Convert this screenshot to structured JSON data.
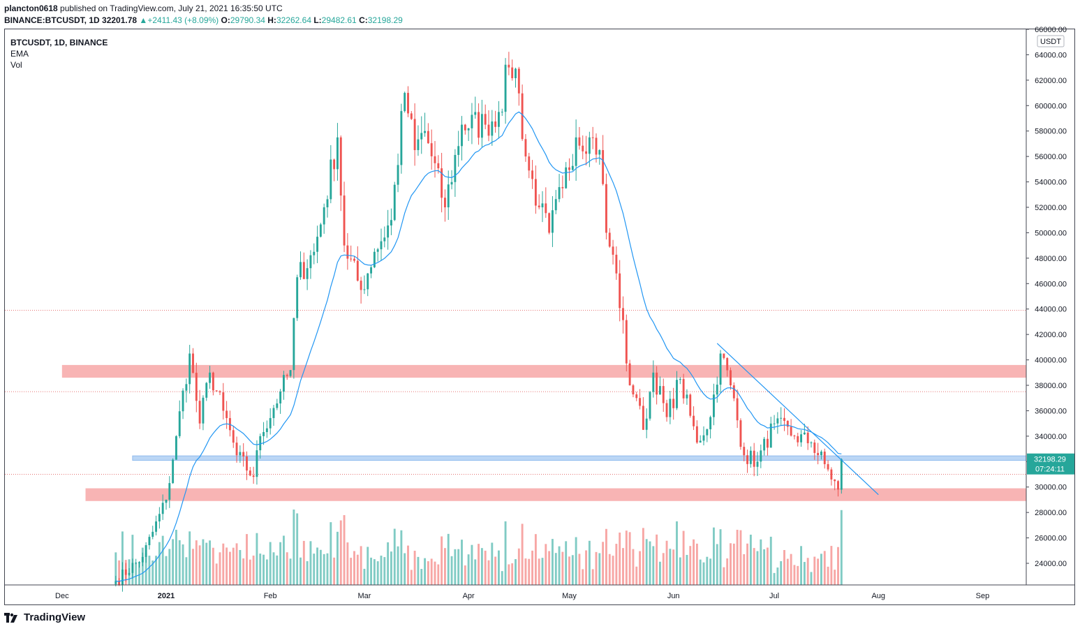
{
  "header": {
    "publisher": "plancton0618",
    "published_text": "published on TradingView.com, July 21, 2021 16:35:50 UTC",
    "symbol_full": "BINANCE:BTCUSDT, 1D",
    "last": "32201.78",
    "change": "+2411.43 (+8.09%)",
    "o_label": "O:",
    "o": "29790.34",
    "h_label": "H:",
    "h": "32262.64",
    "l_label": "L:",
    "l": "29482.61",
    "c_label": "C:",
    "c": "32198.29"
  },
  "legend": {
    "symbol": "BTCUSDT, 1D, BINANCE",
    "ema": "EMA",
    "vol": "Vol"
  },
  "footer": {
    "brand": "TradingView"
  },
  "colors": {
    "up": "#26a69a",
    "down": "#ef5350",
    "ema": "#2196f3",
    "vol_up": "#80cbc4",
    "vol_down": "#f7a6a4",
    "resistance_zone": "#f8b4b4",
    "support_zone": "#bbd6f5",
    "dotted_level": "#e57373"
  },
  "chart_data": {
    "type": "candlestick",
    "title": "BTCUSDT, 1D, BINANCE",
    "currency_label": "USDT",
    "y_range": [
      22300,
      66000
    ],
    "y_ticks": [
      "24000.00",
      "26000.00",
      "28000.00",
      "30000.00",
      "32000.00",
      "34000.00",
      "36000.00",
      "38000.00",
      "40000.00",
      "42000.00",
      "44000.00",
      "46000.00",
      "48000.00",
      "50000.00",
      "52000.00",
      "54000.00",
      "56000.00",
      "58000.00",
      "60000.00",
      "62000.00",
      "64000.00",
      "66000.00"
    ],
    "x_ticks": [
      {
        "label": "Dec",
        "date": "2020-12-01"
      },
      {
        "label": "2021",
        "date": "2021-01-01",
        "bold": true
      },
      {
        "label": "Feb",
        "date": "2021-02-01"
      },
      {
        "label": "Mar",
        "date": "2021-03-01"
      },
      {
        "label": "Apr",
        "date": "2021-04-01"
      },
      {
        "label": "May",
        "date": "2021-05-01"
      },
      {
        "label": "Jun",
        "date": "2021-06-01"
      },
      {
        "label": "Jul",
        "date": "2021-07-01"
      },
      {
        "label": "Aug",
        "date": "2021-08-01"
      },
      {
        "label": "Sep",
        "date": "2021-09-01"
      }
    ],
    "x_range": [
      "2020-11-14",
      "2021-09-14"
    ],
    "last_price_label": "32198.29",
    "countdown_label": "07:24:11",
    "dotted_levels": [
      43900,
      37500,
      31000
    ],
    "zones": [
      {
        "kind": "resistance",
        "from_date": "2020-12-01",
        "low": 38600,
        "high": 39600
      },
      {
        "kind": "resistance",
        "from_date": "2020-12-08",
        "low": 28900,
        "high": 29900
      },
      {
        "kind": "support",
        "from_date": "2020-12-22",
        "low": 32100,
        "high": 32450
      }
    ],
    "trendline": {
      "from": {
        "date": "2021-06-14",
        "price": 41300
      },
      "to": {
        "date": "2021-08-01",
        "price": 29400
      }
    },
    "anchors": [
      {
        "date": "2020-12-17",
        "price": 22600
      },
      {
        "date": "2020-12-25",
        "price": 24500
      },
      {
        "date": "2021-01-01",
        "price": 29000
      },
      {
        "date": "2021-01-04",
        "price": 34000
      },
      {
        "date": "2021-01-08",
        "price": 40500
      },
      {
        "date": "2021-01-11",
        "price": 35000
      },
      {
        "date": "2021-01-14",
        "price": 39000
      },
      {
        "date": "2021-01-18",
        "price": 36000
      },
      {
        "date": "2021-01-22",
        "price": 32500
      },
      {
        "date": "2021-01-27",
        "price": 30800
      },
      {
        "date": "2021-01-29",
        "price": 34000
      },
      {
        "date": "2021-02-04",
        "price": 37500
      },
      {
        "date": "2021-02-07",
        "price": 39200
      },
      {
        "date": "2021-02-09",
        "price": 46500
      },
      {
        "date": "2021-02-14",
        "price": 48500
      },
      {
        "date": "2021-02-17",
        "price": 52000
      },
      {
        "date": "2021-02-21",
        "price": 57500
      },
      {
        "date": "2021-02-23",
        "price": 49000
      },
      {
        "date": "2021-02-28",
        "price": 45500
      },
      {
        "date": "2021-03-04",
        "price": 48500
      },
      {
        "date": "2021-03-09",
        "price": 51000
      },
      {
        "date": "2021-03-13",
        "price": 61000
      },
      {
        "date": "2021-03-16",
        "price": 56500
      },
      {
        "date": "2021-03-19",
        "price": 58000
      },
      {
        "date": "2021-03-25",
        "price": 52000
      },
      {
        "date": "2021-03-30",
        "price": 58500
      },
      {
        "date": "2021-04-06",
        "price": 58500
      },
      {
        "date": "2021-04-10",
        "price": 59500
      },
      {
        "date": "2021-04-13",
        "price": 63000
      },
      {
        "date": "2021-04-15",
        "price": 62900
      },
      {
        "date": "2021-04-18",
        "price": 56000
      },
      {
        "date": "2021-04-22",
        "price": 52000
      },
      {
        "date": "2021-04-25",
        "price": 50000
      },
      {
        "date": "2021-04-29",
        "price": 53500
      },
      {
        "date": "2021-05-03",
        "price": 57500
      },
      {
        "date": "2021-05-07",
        "price": 57500
      },
      {
        "date": "2021-05-10",
        "price": 56500
      },
      {
        "date": "2021-05-12",
        "price": 50000
      },
      {
        "date": "2021-05-15",
        "price": 46800
      },
      {
        "date": "2021-05-19",
        "price": 38000
      },
      {
        "date": "2021-05-21",
        "price": 37000
      },
      {
        "date": "2021-05-23",
        "price": 34500
      },
      {
        "date": "2021-05-26",
        "price": 39000
      },
      {
        "date": "2021-05-30",
        "price": 35500
      },
      {
        "date": "2021-06-03",
        "price": 38500
      },
      {
        "date": "2021-06-08",
        "price": 33500
      },
      {
        "date": "2021-06-12",
        "price": 35500
      },
      {
        "date": "2021-06-15",
        "price": 40500
      },
      {
        "date": "2021-06-18",
        "price": 38000
      },
      {
        "date": "2021-06-22",
        "price": 32500
      },
      {
        "date": "2021-06-26",
        "price": 32000
      },
      {
        "date": "2021-07-01",
        "price": 35000
      },
      {
        "date": "2021-07-07",
        "price": 34000
      },
      {
        "date": "2021-07-12",
        "price": 33500
      },
      {
        "date": "2021-07-16",
        "price": 31800
      },
      {
        "date": "2021-07-20",
        "price": 29800
      },
      {
        "date": "2021-07-21",
        "price": 32200
      }
    ],
    "volume_scale": "relative"
  }
}
